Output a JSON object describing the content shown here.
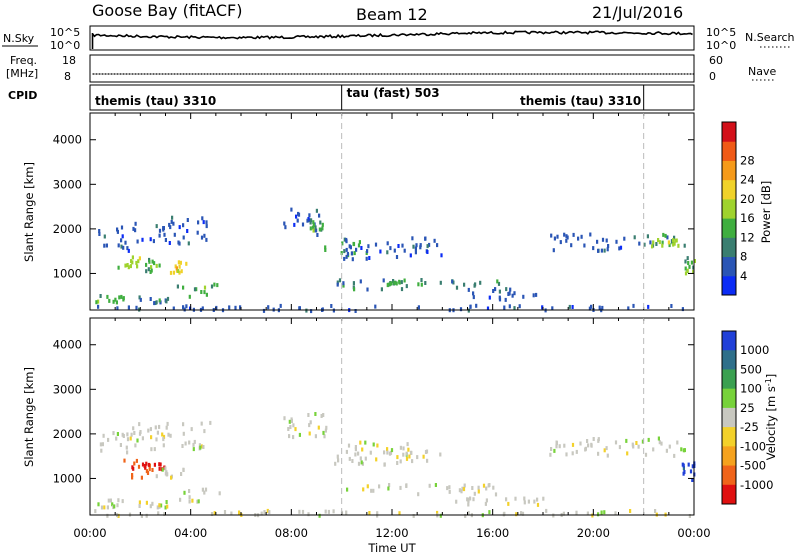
{
  "header": {
    "station": "Goose Bay (fitACF)",
    "beam": "Beam 12",
    "date": "21/Jul/2016"
  },
  "strips": {
    "nsky_label": "N.Sky",
    "nsearch_label": "N.Search",
    "nsky_ticks": [
      "10^5",
      "10^0"
    ],
    "nsearch_ticks": [
      "10^5",
      "10^0"
    ],
    "freq_label_line1": "Freq.",
    "freq_label_line2": "[MHz]",
    "freq_ticks": [
      "18",
      "8"
    ],
    "nave_label": "Nave",
    "nave_ticks": [
      "60",
      "0"
    ],
    "cpid_label": "CPID"
  },
  "modes": [
    {
      "name": "themis (tau) 3310",
      "start_hour": 0,
      "end_hour": 10
    },
    {
      "name": "tau (fast) 503",
      "start_hour": 10,
      "end_hour": 22
    },
    {
      "name": "themis (tau) 3310",
      "start_hour": 22,
      "end_hour": 24
    }
  ],
  "chart_data": [
    {
      "type": "heatmap",
      "name": "Power",
      "xlabel": "Time UT",
      "ylabel": "Slant Range [km]",
      "x_ticks": [
        "00:00",
        "04:00",
        "08:00",
        "12:00",
        "16:00",
        "20:00",
        "00:00"
      ],
      "xlim_hours": [
        0,
        24
      ],
      "ylim_km": [
        180,
        4600
      ],
      "y_ticks": [
        1000,
        2000,
        3000,
        4000
      ],
      "colorbar": {
        "label": "Power [dB]",
        "ticks": [
          "4",
          "8",
          "12",
          "16",
          "20",
          "24",
          "28"
        ],
        "colors": [
          "#0b2cf5",
          "#2a55b5",
          "#3a7e70",
          "#3fae3f",
          "#9fd32e",
          "#f0d22a",
          "#f59a1a",
          "#f05a17",
          "#d3101a"
        ]
      },
      "echo_regions": [
        {
          "t": [
            0.3,
            1.6
          ],
          "r": [
            1550,
            2100
          ],
          "level": 1
        },
        {
          "t": [
            1.6,
            3.2
          ],
          "r": [
            1700,
            2200
          ],
          "level": 1
        },
        {
          "t": [
            3.2,
            4.8
          ],
          "r": [
            1700,
            2300
          ],
          "level": 1
        },
        {
          "t": [
            0.9,
            2.1
          ],
          "r": [
            1100,
            1450
          ],
          "level": 4
        },
        {
          "t": [
            2.1,
            2.8
          ],
          "r": [
            1050,
            1350
          ],
          "level": 3
        },
        {
          "t": [
            2.9,
            3.8
          ],
          "r": [
            1050,
            1300
          ],
          "level": 5
        },
        {
          "t": [
            3.4,
            5.2
          ],
          "r": [
            500,
            800
          ],
          "level": 3
        },
        {
          "t": [
            0.2,
            1.3
          ],
          "r": [
            380,
            560
          ],
          "level": 3
        },
        {
          "t": [
            1.9,
            3.2
          ],
          "r": [
            380,
            520
          ],
          "level": 2
        },
        {
          "t": [
            7.6,
            9.1
          ],
          "r": [
            1900,
            2500
          ],
          "level": 1
        },
        {
          "t": [
            8.7,
            9.4
          ],
          "r": [
            2000,
            2200
          ],
          "level": 3
        },
        {
          "t": [
            9.3,
            11.0
          ],
          "r": [
            1450,
            1800
          ],
          "level": 3
        },
        {
          "t": [
            10.0,
            14.0
          ],
          "r": [
            1350,
            1850
          ],
          "level": 1
        },
        {
          "t": [
            9.8,
            16.3
          ],
          "r": [
            680,
            900
          ],
          "level": 2
        },
        {
          "t": [
            11.0,
            13.5
          ],
          "r": [
            780,
            860
          ],
          "level": 3
        },
        {
          "t": [
            14.5,
            18.0
          ],
          "r": [
            450,
            700
          ],
          "level": 1
        },
        {
          "t": [
            18.2,
            21.5
          ],
          "r": [
            1550,
            1950
          ],
          "level": 1
        },
        {
          "t": [
            21.5,
            23.6
          ],
          "r": [
            1600,
            1950
          ],
          "level": 2
        },
        {
          "t": [
            22.2,
            23.4
          ],
          "r": [
            1650,
            1800
          ],
          "level": 4
        },
        {
          "t": [
            23.6,
            24.0
          ],
          "r": [
            1000,
            1400
          ],
          "level": 3
        },
        {
          "t": [
            0.0,
            24.0
          ],
          "r": [
            200,
            320
          ],
          "level": 1
        }
      ]
    },
    {
      "type": "heatmap",
      "name": "Velocity",
      "xlabel": "Time UT",
      "ylabel": "Slant Range [km]",
      "x_ticks": [
        "00:00",
        "04:00",
        "08:00",
        "12:00",
        "16:00",
        "20:00",
        "00:00"
      ],
      "xlim_hours": [
        0,
        24
      ],
      "ylim_km": [
        180,
        4600
      ],
      "y_ticks": [
        1000,
        2000,
        3000,
        4000
      ],
      "colorbar": {
        "label": "Velocity [m s^-1]",
        "ticks": [
          "1000",
          "500",
          "100",
          "25",
          "-25",
          "-100",
          "-500",
          "-1000"
        ],
        "colors": [
          "#2040d8",
          "#2e6f8a",
          "#3aa050",
          "#77d23a",
          "#c8c8c0",
          "#f3d12a",
          "#f5a21e",
          "#f0641a",
          "#e01010"
        ]
      },
      "echo_regions": [
        {
          "t": [
            0.3,
            1.6
          ],
          "r": [
            1550,
            2100
          ],
          "level": 4
        },
        {
          "t": [
            1.6,
            4.8
          ],
          "r": [
            1700,
            2300
          ],
          "level": 4
        },
        {
          "t": [
            0.9,
            2.6
          ],
          "r": [
            1050,
            1450
          ],
          "level": 7
        },
        {
          "t": [
            2.0,
            3.0
          ],
          "r": [
            1250,
            1400
          ],
          "level": 8
        },
        {
          "t": [
            2.6,
            3.8
          ],
          "r": [
            1050,
            1300
          ],
          "level": 4
        },
        {
          "t": [
            3.4,
            5.2
          ],
          "r": [
            500,
            800
          ],
          "level": 4
        },
        {
          "t": [
            0.2,
            1.3
          ],
          "r": [
            380,
            560
          ],
          "level": 4
        },
        {
          "t": [
            1.9,
            3.2
          ],
          "r": [
            380,
            520
          ],
          "level": 4
        },
        {
          "t": [
            7.6,
            9.4
          ],
          "r": [
            1900,
            2500
          ],
          "level": 4
        },
        {
          "t": [
            9.3,
            14.0
          ],
          "r": [
            1350,
            1850
          ],
          "level": 4
        },
        {
          "t": [
            9.8,
            16.3
          ],
          "r": [
            680,
            900
          ],
          "level": 4
        },
        {
          "t": [
            14.5,
            18.0
          ],
          "r": [
            450,
            700
          ],
          "level": 4
        },
        {
          "t": [
            18.2,
            23.6
          ],
          "r": [
            1550,
            1950
          ],
          "level": 4
        },
        {
          "t": [
            23.5,
            24.0
          ],
          "r": [
            1000,
            1400
          ],
          "level": 0
        },
        {
          "t": [
            0.0,
            24.0
          ],
          "r": [
            200,
            320
          ],
          "level": 4
        }
      ]
    }
  ]
}
